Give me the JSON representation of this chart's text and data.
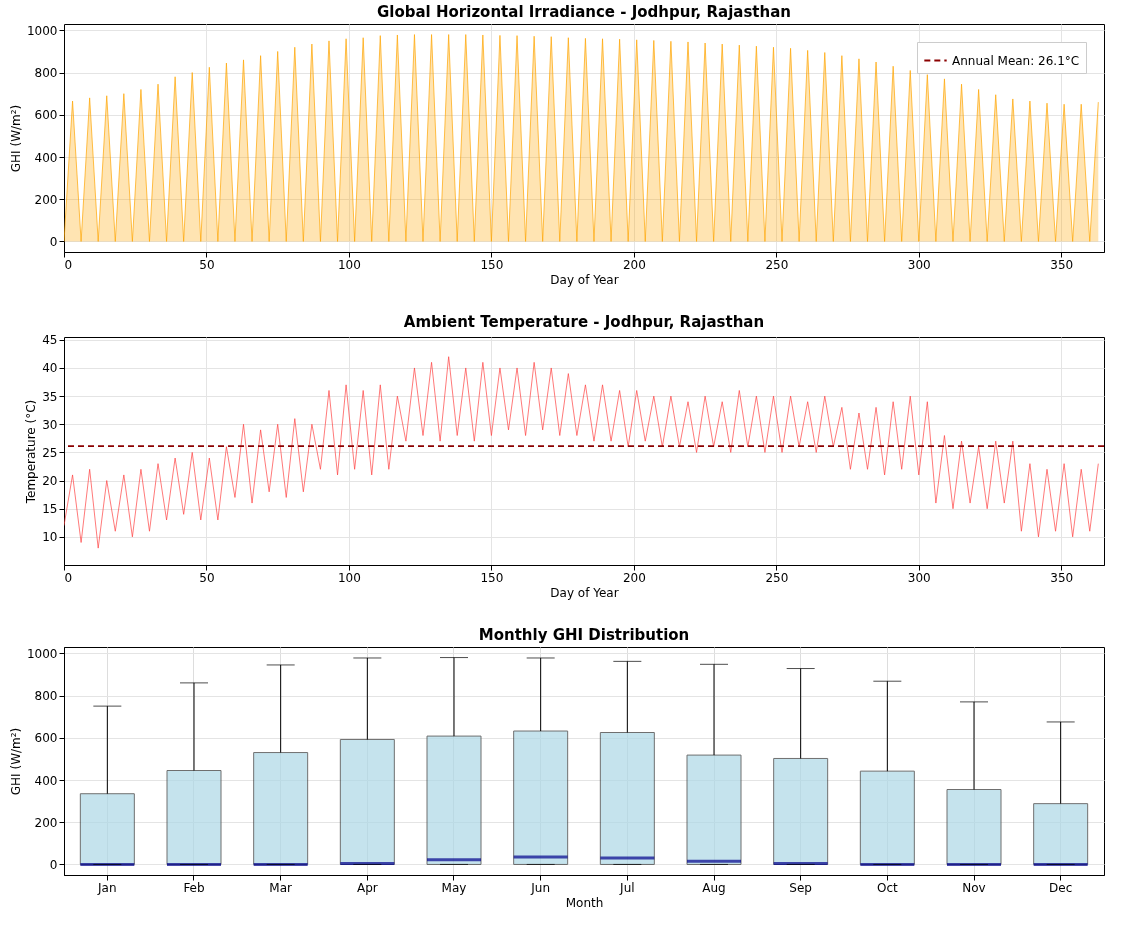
{
  "chart_data": [
    {
      "type": "area",
      "title": "Global Horizontal Irradiance - Jodhpur, Rajasthan",
      "xlabel": "Day of Year",
      "ylabel": "GHI (W/m²)",
      "xlim": [
        0,
        365
      ],
      "xticks": [
        0,
        50,
        100,
        150,
        200,
        250,
        300,
        350
      ],
      "ylim": [
        -50,
        1030
      ],
      "yticks": [
        0,
        200,
        400,
        600,
        800,
        1000
      ],
      "grid": true,
      "x": [
        0,
        3,
        6,
        9,
        12,
        15,
        18,
        21,
        24,
        27,
        30,
        33,
        36,
        39,
        42,
        45,
        48,
        51,
        54,
        57,
        60,
        63,
        66,
        69,
        72,
        75,
        78,
        81,
        84,
        87,
        90,
        93,
        96,
        99,
        102,
        105,
        108,
        111,
        114,
        117,
        120,
        123,
        126,
        129,
        132,
        135,
        138,
        141,
        144,
        147,
        150,
        153,
        156,
        159,
        162,
        165,
        168,
        171,
        174,
        177,
        180,
        183,
        186,
        189,
        192,
        195,
        198,
        201,
        204,
        207,
        210,
        213,
        216,
        219,
        222,
        225,
        228,
        231,
        234,
        237,
        240,
        243,
        246,
        249,
        252,
        255,
        258,
        261,
        264,
        267,
        270,
        273,
        276,
        279,
        282,
        285,
        288,
        291,
        294,
        297,
        300,
        303,
        306,
        309,
        312,
        315,
        318,
        321,
        324,
        327,
        330,
        333,
        336,
        339,
        342,
        345,
        348,
        351,
        354,
        357,
        360,
        363
      ],
      "series": [
        {
          "color": "#ffa500",
          "values": [
            0,
            665,
            0,
            680,
            0,
            690,
            0,
            700,
            0,
            720,
            0,
            745,
            0,
            780,
            0,
            800,
            0,
            825,
            0,
            845,
            0,
            860,
            0,
            880,
            0,
            900,
            0,
            920,
            0,
            935,
            0,
            950,
            0,
            960,
            0,
            965,
            0,
            975,
            0,
            978,
            0,
            980,
            0,
            980,
            0,
            980,
            0,
            980,
            0,
            978,
            0,
            976,
            0,
            975,
            0,
            972,
            0,
            970,
            0,
            965,
            0,
            962,
            0,
            960,
            0,
            958,
            0,
            955,
            0,
            952,
            0,
            948,
            0,
            945,
            0,
            940,
            0,
            935,
            0,
            930,
            0,
            925,
            0,
            920,
            0,
            915,
            0,
            905,
            0,
            895,
            0,
            880,
            0,
            865,
            0,
            850,
            0,
            830,
            0,
            810,
            0,
            790,
            0,
            770,
            0,
            745,
            0,
            720,
            0,
            695,
            0,
            675,
            0,
            665,
            0,
            655,
            0,
            650,
            0,
            650,
            0,
            660
          ]
        }
      ]
    },
    {
      "type": "line",
      "title": "Ambient Temperature - Jodhpur, Rajasthan",
      "xlabel": "Day of Year",
      "ylabel": "Temperature (°C)",
      "xlim": [
        0,
        365
      ],
      "xticks": [
        0,
        50,
        100,
        150,
        200,
        250,
        300,
        350
      ],
      "ylim": [
        5,
        45.5
      ],
      "yticks": [
        10,
        15,
        20,
        25,
        30,
        35,
        40,
        45
      ],
      "grid": true,
      "legend": "top right",
      "x": [
        0,
        3,
        6,
        9,
        12,
        15,
        18,
        21,
        24,
        27,
        30,
        33,
        36,
        39,
        42,
        45,
        48,
        51,
        54,
        57,
        60,
        63,
        66,
        69,
        72,
        75,
        78,
        81,
        84,
        87,
        90,
        93,
        96,
        99,
        102,
        105,
        108,
        111,
        114,
        117,
        120,
        123,
        126,
        129,
        132,
        135,
        138,
        141,
        144,
        147,
        150,
        153,
        156,
        159,
        162,
        165,
        168,
        171,
        174,
        177,
        180,
        183,
        186,
        189,
        192,
        195,
        198,
        201,
        204,
        207,
        210,
        213,
        216,
        219,
        222,
        225,
        228,
        231,
        234,
        237,
        240,
        243,
        246,
        249,
        252,
        255,
        258,
        261,
        264,
        267,
        270,
        273,
        276,
        279,
        282,
        285,
        288,
        291,
        294,
        297,
        300,
        303,
        306,
        309,
        312,
        315,
        318,
        321,
        324,
        327,
        330,
        333,
        336,
        339,
        342,
        345,
        348,
        351,
        354,
        357,
        360,
        363
      ],
      "series": [
        {
          "color": "#ff4040",
          "values": [
            12,
            21,
            9,
            22,
            8,
            20,
            11,
            21,
            10,
            22,
            11,
            23,
            13,
            24,
            14,
            25,
            13,
            24,
            13,
            26,
            17,
            30,
            16,
            29,
            18,
            30,
            17,
            31,
            18,
            30,
            22,
            36,
            21,
            37,
            22,
            36,
            21,
            37,
            22,
            35,
            27,
            40,
            28,
            41,
            27,
            42,
            28,
            40,
            27,
            41,
            28,
            40,
            29,
            40,
            28,
            41,
            29,
            40,
            28,
            39,
            28,
            37,
            27,
            37,
            27,
            36,
            26,
            36,
            27,
            35,
            26,
            35,
            26,
            34,
            25,
            35,
            26,
            34,
            25,
            36,
            26,
            35,
            25,
            35,
            25,
            35,
            26,
            34,
            25,
            35,
            26,
            33,
            22,
            32,
            22,
            33,
            21,
            34,
            22,
            35,
            21,
            34,
            16,
            28,
            15,
            27,
            16,
            26,
            15,
            27,
            16,
            27,
            11,
            23,
            10,
            22,
            11,
            23,
            10,
            22,
            11,
            23
          ]
        }
      ],
      "ref_lines": [
        {
          "axis": "y",
          "value": 26.1,
          "label": "Annual Mean: 26.1°C",
          "color": "#8b0000",
          "line_style": "dashed"
        }
      ]
    },
    {
      "type": "box",
      "title": "Monthly GHI Distribution",
      "xlabel": "Month",
      "ylabel": "GHI (W/m²)",
      "ylim": [
        -50,
        1030
      ],
      "yticks": [
        0,
        200,
        400,
        600,
        800,
        1000
      ],
      "grid": true,
      "categories": [
        "Jan",
        "Feb",
        "Mar",
        "Apr",
        "May",
        "Jun",
        "Jul",
        "Aug",
        "Sep",
        "Oct",
        "Nov",
        "Dec"
      ],
      "series": [
        {
          "color": "#add8e6",
          "boxes": [
            {
              "low": 0,
              "q1": 0,
              "median": 0,
              "q3": 335,
              "high": 750
            },
            {
              "low": 0,
              "q1": 0,
              "median": 0,
              "q3": 445,
              "high": 860
            },
            {
              "low": 0,
              "q1": 0,
              "median": 0,
              "q3": 530,
              "high": 945
            },
            {
              "low": 0,
              "q1": 0,
              "median": 5,
              "q3": 592,
              "high": 978
            },
            {
              "low": 0,
              "q1": 0,
              "median": 22,
              "q3": 608,
              "high": 980
            },
            {
              "low": 0,
              "q1": 0,
              "median": 35,
              "q3": 632,
              "high": 978
            },
            {
              "low": 0,
              "q1": 0,
              "median": 30,
              "q3": 625,
              "high": 962
            },
            {
              "low": 0,
              "q1": 0,
              "median": 15,
              "q3": 518,
              "high": 948
            },
            {
              "low": 0,
              "q1": 0,
              "median": 5,
              "q3": 502,
              "high": 928
            },
            {
              "low": 0,
              "q1": 0,
              "median": 0,
              "q3": 442,
              "high": 868
            },
            {
              "low": 0,
              "q1": 0,
              "median": 0,
              "q3": 355,
              "high": 770
            },
            {
              "low": 0,
              "q1": 0,
              "median": 0,
              "q3": 288,
              "high": 675
            }
          ]
        }
      ]
    }
  ]
}
